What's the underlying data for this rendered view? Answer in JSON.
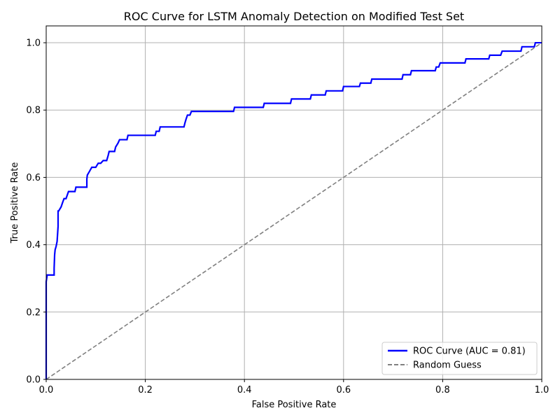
{
  "chart_data": {
    "type": "line",
    "title": "ROC Curve for LSTM Anomaly Detection on Modified Test Set",
    "xlabel": "False Positive Rate",
    "ylabel": "True Positive Rate",
    "xlim": [
      0.0,
      1.0
    ],
    "ylim": [
      0.0,
      1.05
    ],
    "xticks": [
      0.0,
      0.2,
      0.4,
      0.6,
      0.8,
      1.0
    ],
    "yticks": [
      0.0,
      0.2,
      0.4,
      0.6,
      0.8,
      1.0
    ],
    "xtick_labels": [
      "0.0",
      "0.2",
      "0.4",
      "0.6",
      "0.8",
      "1.0"
    ],
    "ytick_labels": [
      "0.0",
      "0.2",
      "0.4",
      "0.6",
      "0.8",
      "1.0"
    ],
    "grid": true,
    "legend_position": "lower-right",
    "series": [
      {
        "name": "ROC Curve (AUC = 0.81)",
        "color": "#0000ff",
        "style": "solid",
        "x": [
          0.0,
          0.0,
          0.002,
          0.002,
          0.016,
          0.016,
          0.017,
          0.018,
          0.02,
          0.022,
          0.024,
          0.024,
          0.025,
          0.03,
          0.033,
          0.036,
          0.04,
          0.045,
          0.058,
          0.06,
          0.082,
          0.082,
          0.083,
          0.087,
          0.092,
          0.095,
          0.1,
          0.105,
          0.11,
          0.115,
          0.122,
          0.125,
          0.127,
          0.13,
          0.138,
          0.14,
          0.145,
          0.148,
          0.15,
          0.163,
          0.165,
          0.22,
          0.222,
          0.228,
          0.23,
          0.278,
          0.28,
          0.282,
          0.285,
          0.29,
          0.293,
          0.378,
          0.38,
          0.438,
          0.44,
          0.493,
          0.495,
          0.533,
          0.535,
          0.563,
          0.565,
          0.598,
          0.6,
          0.632,
          0.634,
          0.655,
          0.657,
          0.718,
          0.72,
          0.735,
          0.737,
          0.785,
          0.787,
          0.792,
          0.795,
          0.845,
          0.847,
          0.893,
          0.895,
          0.917,
          0.92,
          0.958,
          0.96,
          0.985,
          0.987,
          1.0
        ],
        "y": [
          0.0,
          0.29,
          0.31,
          0.31,
          0.31,
          0.33,
          0.37,
          0.385,
          0.395,
          0.41,
          0.455,
          0.5,
          0.5,
          0.512,
          0.525,
          0.537,
          0.537,
          0.558,
          0.558,
          0.571,
          0.571,
          0.595,
          0.607,
          0.617,
          0.63,
          0.63,
          0.63,
          0.642,
          0.642,
          0.65,
          0.65,
          0.665,
          0.677,
          0.677,
          0.677,
          0.69,
          0.702,
          0.712,
          0.712,
          0.712,
          0.725,
          0.725,
          0.737,
          0.737,
          0.75,
          0.75,
          0.762,
          0.772,
          0.785,
          0.785,
          0.796,
          0.796,
          0.808,
          0.808,
          0.82,
          0.82,
          0.833,
          0.833,
          0.845,
          0.845,
          0.857,
          0.857,
          0.87,
          0.87,
          0.88,
          0.88,
          0.892,
          0.892,
          0.905,
          0.905,
          0.917,
          0.917,
          0.928,
          0.928,
          0.94,
          0.94,
          0.952,
          0.952,
          0.963,
          0.963,
          0.975,
          0.975,
          0.988,
          0.988,
          1.0,
          1.0
        ]
      },
      {
        "name": "Random Guess",
        "color": "#808080",
        "style": "dashed",
        "x": [
          0.0,
          1.0
        ],
        "y": [
          0.0,
          1.0
        ]
      }
    ]
  }
}
